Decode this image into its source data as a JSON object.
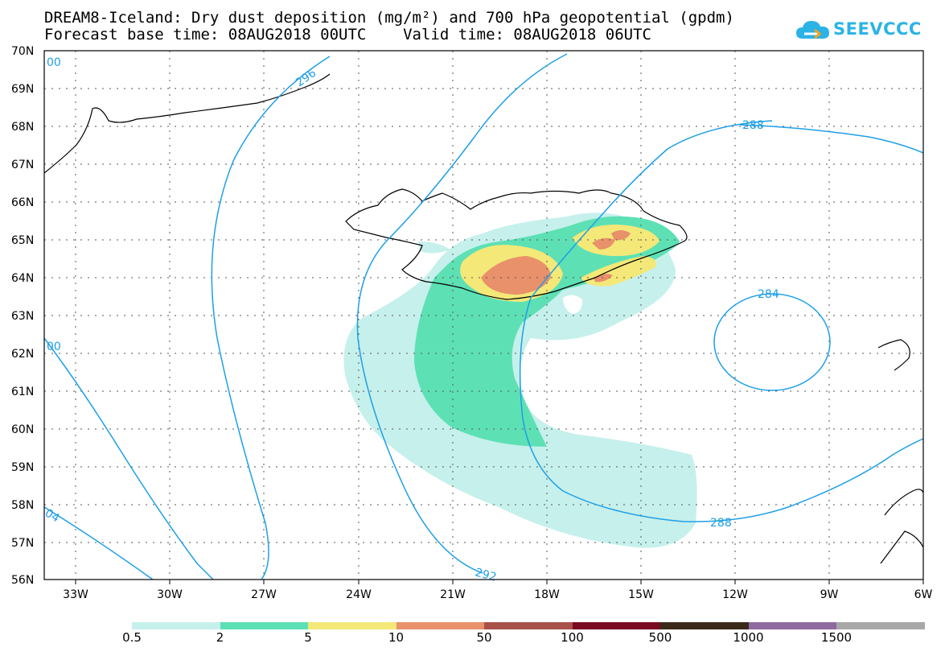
{
  "title": {
    "line1": "DREAM8-Iceland: Dry dust deposition (mg/m²) and 700 hPa geopotential (gpdm)",
    "line2": "Forecast base time: 08AUG2018 00UTC    Valid time: 08AUG2018 06UTC"
  },
  "logo": {
    "text": "SEEVCCC",
    "icon": "cloud-logo-icon",
    "color": "#2bb3e6"
  },
  "map": {
    "lat_labels": [
      "70N",
      "69N",
      "68N",
      "67N",
      "66N",
      "65N",
      "64N",
      "63N",
      "62N",
      "61N",
      "60N",
      "59N",
      "58N",
      "57N",
      "56N"
    ],
    "lon_labels": [
      "33W",
      "30W",
      "27W",
      "24W",
      "21W",
      "18W",
      "15W",
      "12W",
      "9W",
      "6W"
    ],
    "contour_color": "#1e9fe6",
    "contour_labels": [
      "296",
      "288",
      "284",
      "288",
      "292",
      "00",
      "00",
      "04"
    ]
  },
  "legend": {
    "levels": [
      "0.5",
      "2",
      "5",
      "10",
      "50",
      "100",
      "500",
      "1000",
      "1500"
    ],
    "colors": [
      "#c6f0ec",
      "#5de0b4",
      "#f3e878",
      "#e8916a",
      "#a8524a",
      "#7a0a22",
      "#3b2a1a",
      "#8f6aa0",
      "#a8a8a8"
    ]
  }
}
